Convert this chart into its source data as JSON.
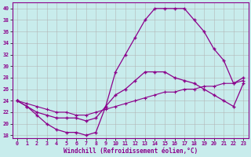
{
  "xlabel": "Windchill (Refroidissement éolien,°C)",
  "bg_color": "#c8ecec",
  "line_color": "#8b008b",
  "grid_color": "#b0b0b0",
  "xlim": [
    -0.5,
    23.5
  ],
  "ylim": [
    17.5,
    41
  ],
  "xticks": [
    0,
    1,
    2,
    3,
    4,
    5,
    6,
    7,
    8,
    9,
    10,
    11,
    12,
    13,
    14,
    15,
    16,
    17,
    18,
    19,
    20,
    21,
    22,
    23
  ],
  "yticks": [
    18,
    20,
    22,
    24,
    26,
    28,
    30,
    32,
    34,
    36,
    38,
    40
  ],
  "curve1_x": [
    0,
    1,
    2,
    3,
    4,
    5,
    6,
    7,
    8,
    9,
    10,
    11,
    12,
    13,
    14,
    15,
    16,
    17,
    18,
    19,
    20,
    21,
    22,
    23
  ],
  "curve1_y": [
    24,
    23,
    21.5,
    20,
    19,
    18.5,
    18.5,
    18,
    18.5,
    23,
    29,
    32,
    35,
    38,
    40,
    40,
    40,
    40,
    38,
    36,
    33,
    31,
    27,
    28
  ],
  "curve2_x": [
    0,
    1,
    2,
    3,
    4,
    5,
    6,
    7,
    8,
    9,
    10,
    11,
    12,
    13,
    14,
    15,
    16,
    17,
    18,
    19,
    20,
    21,
    22,
    23
  ],
  "curve2_y": [
    24,
    23,
    22,
    21.5,
    21,
    21,
    21,
    20.5,
    21,
    23,
    25,
    26,
    27.5,
    29,
    29,
    29,
    28,
    27.5,
    27,
    26,
    25,
    24,
    23,
    27
  ],
  "curve3_x": [
    0,
    1,
    2,
    3,
    4,
    5,
    6,
    7,
    8,
    9,
    10,
    11,
    12,
    13,
    14,
    15,
    16,
    17,
    18,
    19,
    20,
    21,
    22,
    23
  ],
  "curve3_y": [
    24,
    23.5,
    23,
    22.5,
    22,
    22,
    21.5,
    21.5,
    22,
    22.5,
    23,
    23.5,
    24,
    24.5,
    25,
    25.5,
    25.5,
    26,
    26,
    26.5,
    26.5,
    27,
    27,
    27.5
  ]
}
